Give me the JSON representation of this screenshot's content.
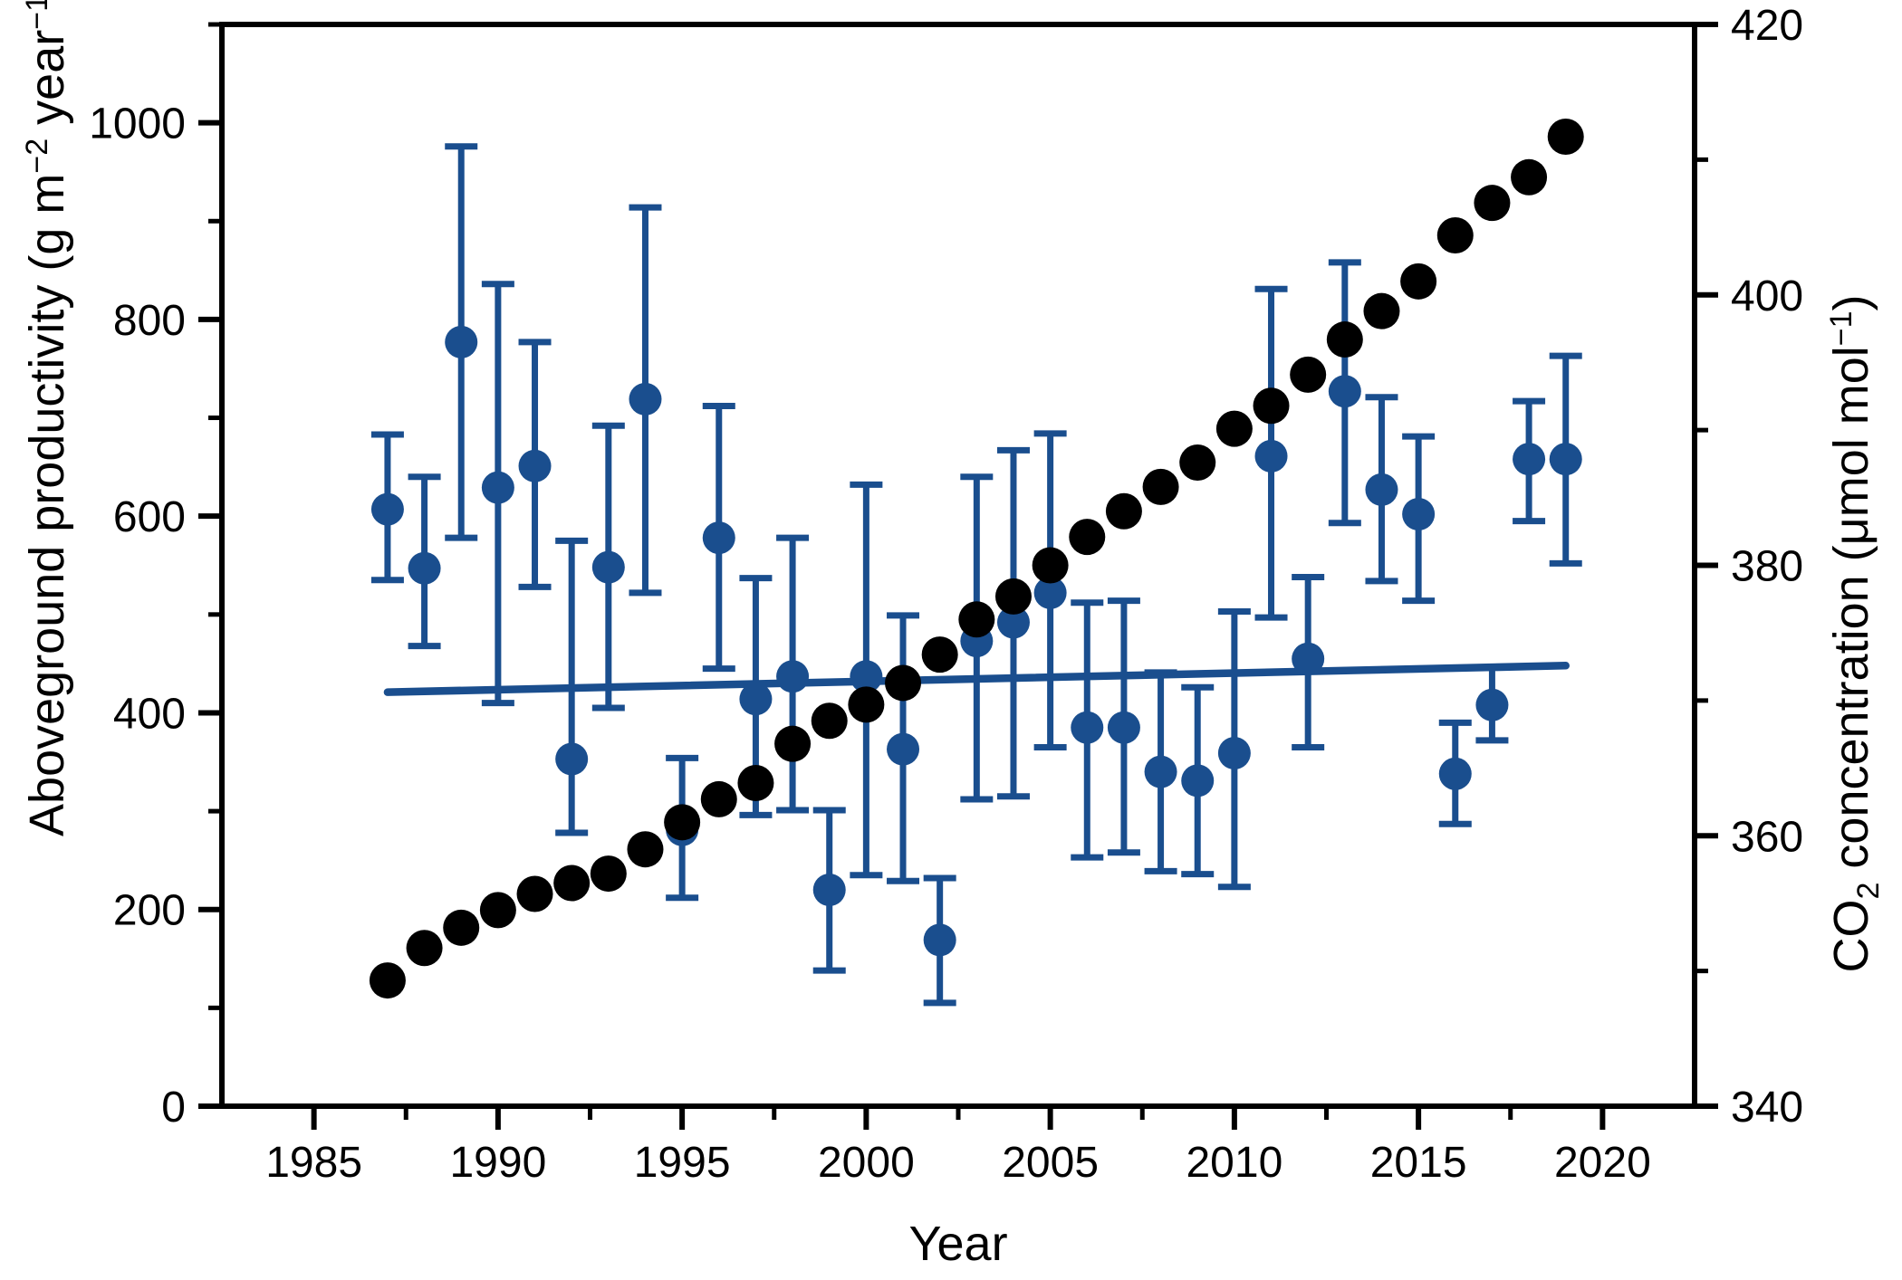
{
  "page": {
    "background": "#ffffff"
  },
  "chart_data": {
    "type": "scatter",
    "title": "",
    "grid": false,
    "legend": null,
    "xlabel": "Year",
    "x_lim": [
      1982.5,
      2022.5
    ],
    "x_major_ticks": [
      1985,
      1990,
      1995,
      2000,
      2005,
      2010,
      2015,
      2020
    ],
    "x_minor_ticks": [
      1987.5,
      1992.5,
      1997.5,
      2002.5,
      2007.5,
      2012.5,
      2017.5
    ],
    "left_axis": {
      "label_plain": "Aboveground productivity (g m−2 year−1)",
      "label_parts": [
        {
          "t": "Aboveground productivity (g m"
        },
        {
          "t": "−2",
          "sup": true
        },
        {
          "t": " year"
        },
        {
          "t": "−1",
          "sup": true
        },
        {
          "t": ")"
        }
      ],
      "lim": [
        0,
        1100
      ],
      "major_ticks": [
        0,
        200,
        400,
        600,
        800,
        1000
      ],
      "minor_ticks": [
        100,
        300,
        500,
        700,
        900,
        1100
      ]
    },
    "right_axis": {
      "label_plain": "CO2 concentration (μmol mol−1)",
      "label_parts": [
        {
          "t": "CO"
        },
        {
          "t": "2",
          "sub": true
        },
        {
          "t": " concentration (μmol mol"
        },
        {
          "t": "−1",
          "sup": true
        },
        {
          "t": ")"
        }
      ],
      "lim": [
        340,
        420
      ],
      "major_ticks": [
        340,
        360,
        380,
        400,
        420
      ],
      "minor_ticks": [
        350,
        370,
        390,
        410
      ]
    },
    "series": [
      {
        "name": "Aboveground productivity",
        "axis": "left",
        "type": "scatter_errorbar",
        "color": "#1a4e8e",
        "marker_radius": 18,
        "errorbar_stroke": 7,
        "cap_halfwidth": 18,
        "years": [
          1987,
          1988,
          1989,
          1990,
          1991,
          1992,
          1993,
          1994,
          1995,
          1996,
          1997,
          1998,
          1999,
          2000,
          2001,
          2002,
          2003,
          2004,
          2005,
          2006,
          2007,
          2008,
          2009,
          2010,
          2011,
          2012,
          2013,
          2014,
          2015,
          2016,
          2017,
          2018,
          2019
        ],
        "values": [
          607,
          547,
          777,
          629,
          651,
          353,
          548,
          719,
          281,
          578,
          414,
          437,
          220,
          437,
          363,
          169,
          473,
          492,
          522,
          385,
          385,
          340,
          331,
          359,
          661,
          455,
          727,
          627,
          602,
          338,
          408,
          658,
          658
        ],
        "ci_low": [
          535,
          468,
          578,
          410,
          528,
          278,
          405,
          522,
          212,
          445,
          296,
          301,
          138,
          235,
          229,
          105,
          312,
          315,
          365,
          253,
          258,
          239,
          236,
          223,
          497,
          365,
          593,
          534,
          514,
          287,
          372,
          595,
          552
        ],
        "ci_high": [
          683,
          640,
          976,
          836,
          777,
          575,
          692,
          914,
          354,
          712,
          537,
          578,
          301,
          632,
          499,
          232,
          640,
          667,
          684,
          512,
          514,
          441,
          426,
          503,
          831,
          538,
          858,
          721,
          681,
          390,
          446,
          717,
          763
        ]
      },
      {
        "name": "CO2 concentration",
        "axis": "right",
        "type": "scatter",
        "color": "#000000",
        "marker_radius": 20,
        "years": [
          1987,
          1988,
          1989,
          1990,
          1991,
          1992,
          1993,
          1994,
          1995,
          1996,
          1997,
          1998,
          1999,
          2000,
          2001,
          2002,
          2003,
          2004,
          2005,
          2006,
          2007,
          2008,
          2009,
          2010,
          2011,
          2012,
          2013,
          2014,
          2015,
          2016,
          2017,
          2018,
          2019
        ],
        "values": [
          349.3,
          351.7,
          353.2,
          354.5,
          355.7,
          356.5,
          357.2,
          359.0,
          361.0,
          362.7,
          363.9,
          366.8,
          368.5,
          369.7,
          371.3,
          373.4,
          376.0,
          377.7,
          380.0,
          382.1,
          384.0,
          385.8,
          387.6,
          390.1,
          391.8,
          394.1,
          396.7,
          398.8,
          401.0,
          404.4,
          406.8,
          408.7,
          411.7
        ]
      },
      {
        "name": "Productivity trend line",
        "axis": "left",
        "type": "line",
        "color": "#1a4e8e",
        "stroke_width": 8.5,
        "x": [
          1987,
          2019
        ],
        "y": [
          421,
          448
        ]
      }
    ]
  }
}
